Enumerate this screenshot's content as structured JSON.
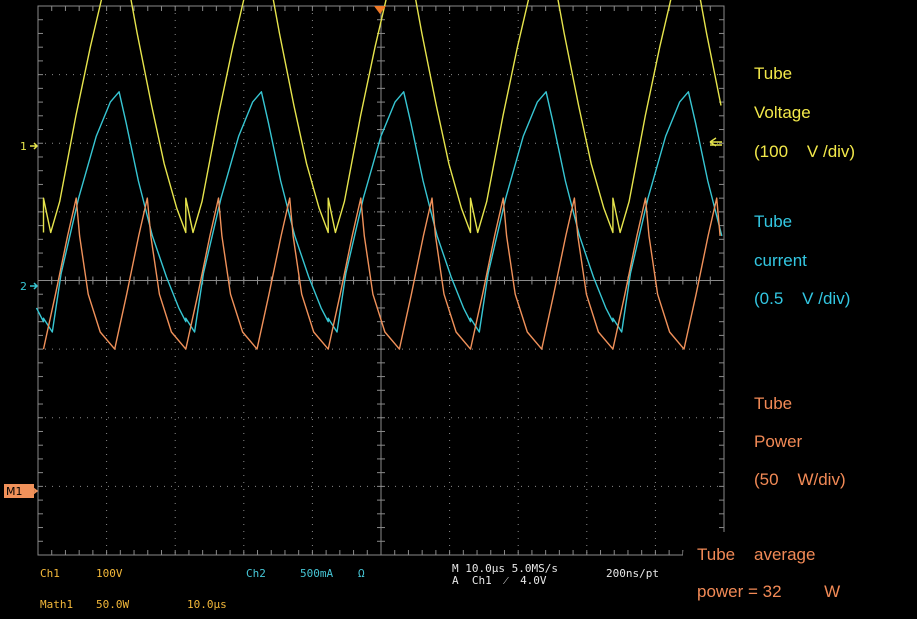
{
  "colors": {
    "background": "#000000",
    "grid": "#8a8a8a",
    "ch1": "#e6e44c",
    "ch2": "#37c6d3",
    "math1": "#f0915a",
    "trigger_marker": "#f07a28",
    "readout_text": "#f4b93a",
    "readout_ch2": "#46c6d6",
    "readout_white": "#e8e8e8",
    "label_voltage": "#f3e94a",
    "label_current": "#33c7e2",
    "label_power": "#f28a56"
  },
  "icons": {
    "trigger_position": "triangle-down-marker",
    "trigger_level": "double-arrow-left-marker",
    "ch1_ground": "arrow-right-marker",
    "ch2_ground": "arrow-right-marker",
    "math1_ground": "arrow-right-marker"
  },
  "markers": {
    "ch1": "1",
    "ch2": "2",
    "math1": "M1"
  },
  "readouts": {
    "ch1_label": "Ch1",
    "ch1_scale": "100V",
    "ch2_label": "Ch2",
    "ch2_scale": "500mA",
    "ch2_unit": "Ω",
    "math1_label": "Math1",
    "math1_scale": "50.0W",
    "math1_time": "10.0μs",
    "timebase": "M 10.0μs 5.0MS/s",
    "record": "200ns/pt",
    "trigger": "A  Ch1  ⁄  4.0V"
  },
  "annotations": {
    "voltage": [
      "Tube",
      "Voltage",
      "(100    V /div)"
    ],
    "current": [
      "Tube",
      "current",
      "(0.5    V /div)"
    ],
    "power": [
      "Tube",
      "Power",
      "(50    W/div)"
    ],
    "average": [
      "Tube    average",
      "power = 32         W"
    ]
  },
  "chart_data": {
    "type": "line",
    "divisions": {
      "x": 10,
      "y": 8
    },
    "x_unit": "μs",
    "x_per_div": 10,
    "xlim": [
      0,
      100
    ],
    "grid": true,
    "series": [
      {
        "channel": "Ch1",
        "color": "#e6e44c",
        "unit": "V",
        "per_div": 100,
        "ground_div": 3.0,
        "period_us": 20.75,
        "phase_us": 0.8,
        "points_divs": [
          [
            0.0,
            -1.8
          ],
          [
            0.2,
            -2.3
          ],
          [
            0.45,
            -1.85
          ],
          [
            0.9,
            -0.6
          ],
          [
            1.3,
            0.4
          ],
          [
            1.7,
            1.3
          ],
          [
            2.0,
            1.8
          ],
          [
            2.1,
            1.95
          ],
          [
            2.25,
            1.6
          ],
          [
            2.6,
            0.6
          ],
          [
            3.0,
            -0.45
          ],
          [
            3.35,
            -1.3
          ],
          [
            3.7,
            -1.95
          ],
          [
            3.95,
            -2.3
          ]
        ]
      },
      {
        "channel": "Ch2",
        "color": "#37c6d3",
        "unit": "A",
        "per_div": 0.5,
        "ground_div": 1.0,
        "period_us": 20.75,
        "phase_us": 0.8,
        "points_divs": [
          [
            0.0,
            -1.55
          ],
          [
            0.25,
            -1.75
          ],
          [
            0.5,
            -0.9
          ],
          [
            1.0,
            0.2
          ],
          [
            1.5,
            1.1
          ],
          [
            1.9,
            1.6
          ],
          [
            2.15,
            1.75
          ],
          [
            2.35,
            1.3
          ],
          [
            2.7,
            0.45
          ],
          [
            3.1,
            -0.35
          ],
          [
            3.5,
            -0.95
          ],
          [
            3.85,
            -1.4
          ],
          [
            4.05,
            -1.6
          ]
        ]
      },
      {
        "channel": "Math1",
        "color": "#f0915a",
        "unit": "W",
        "per_div": 50,
        "ground_div": -1.0,
        "period_us": 10.375,
        "phase_us": 0.8,
        "points_divs": [
          [
            0.0,
            0.0
          ],
          [
            0.35,
            0.8
          ],
          [
            0.7,
            1.65
          ],
          [
            0.95,
            2.2
          ],
          [
            1.05,
            1.65
          ],
          [
            1.3,
            0.8
          ],
          [
            1.65,
            0.25
          ],
          [
            2.07,
            0.0
          ]
        ]
      }
    ]
  }
}
